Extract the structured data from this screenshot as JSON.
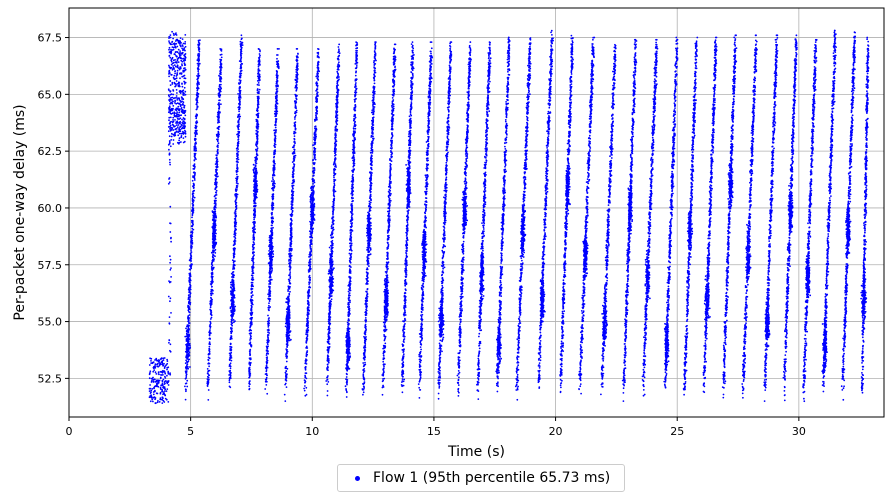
{
  "chart_data": {
    "type": "scatter",
    "title": "",
    "xlabel": "Time (s)",
    "ylabel": "Per-packet one-way delay (ms)",
    "xlim": [
      0,
      33.5
    ],
    "ylim": [
      50.8,
      68.8
    ],
    "xticks": [
      0,
      5,
      10,
      15,
      20,
      25,
      30
    ],
    "xtick_labels": [
      "0",
      "5",
      "10",
      "15",
      "20",
      "25",
      "30"
    ],
    "yticks": [
      52.5,
      55.0,
      57.5,
      60.0,
      62.5,
      65.0,
      67.5
    ],
    "ytick_labels": [
      "52.5",
      "55.0",
      "57.5",
      "60.0",
      "62.5",
      "65.0",
      "67.5"
    ],
    "grid": true,
    "legend_position": "bottom-center",
    "series": [
      {
        "name": "Flow 1 (95th percentile 65.73 ms)",
        "color": "#0000ff",
        "marker": "dot",
        "initial_cluster": {
          "x": [
            3.3,
            4.1
          ],
          "y": [
            51.4,
            53.4
          ]
        },
        "burst_start": {
          "x": 4.1,
          "y_top": 68.9,
          "y_bottom": 63.0
        },
        "ramps": [
          {
            "x_start": 4.8,
            "x_end": 5.7,
            "y_min": 51.5,
            "y_max": 67.5
          },
          {
            "x_start": 5.7,
            "x_end": 6.6,
            "y_min": 51.5,
            "y_max": 67.0
          },
          {
            "x_start": 6.6,
            "x_end": 7.4,
            "y_min": 51.5,
            "y_max": 67.6
          },
          {
            "x_start": 7.4,
            "x_end": 8.1,
            "y_min": 51.6,
            "y_max": 67.0
          },
          {
            "x_start": 8.1,
            "x_end": 8.9,
            "y_min": 51.6,
            "y_max": 67.0
          },
          {
            "x_start": 8.9,
            "x_end": 9.7,
            "y_min": 51.5,
            "y_max": 67.0
          },
          {
            "x_start": 9.7,
            "x_end": 10.6,
            "y_min": 51.6,
            "y_max": 67.0
          },
          {
            "x_start": 10.6,
            "x_end": 11.4,
            "y_min": 51.4,
            "y_max": 67.2
          },
          {
            "x_start": 11.4,
            "x_end": 12.1,
            "y_min": 51.3,
            "y_max": 67.3
          },
          {
            "x_start": 12.1,
            "x_end": 12.9,
            "y_min": 51.5,
            "y_max": 67.3
          },
          {
            "x_start": 12.9,
            "x_end": 13.7,
            "y_min": 51.4,
            "y_max": 67.2
          },
          {
            "x_start": 13.7,
            "x_end": 14.4,
            "y_min": 51.6,
            "y_max": 67.3
          },
          {
            "x_start": 14.4,
            "x_end": 15.2,
            "y_min": 51.4,
            "y_max": 67.3
          },
          {
            "x_start": 15.2,
            "x_end": 16.0,
            "y_min": 51.6,
            "y_max": 67.3
          },
          {
            "x_start": 16.0,
            "x_end": 16.8,
            "y_min": 51.6,
            "y_max": 67.3
          },
          {
            "x_start": 16.8,
            "x_end": 17.6,
            "y_min": 51.5,
            "y_max": 67.3
          },
          {
            "x_start": 17.6,
            "x_end": 18.4,
            "y_min": 51.5,
            "y_max": 67.5
          },
          {
            "x_start": 18.4,
            "x_end": 19.3,
            "y_min": 51.5,
            "y_max": 67.5
          },
          {
            "x_start": 19.3,
            "x_end": 20.2,
            "y_min": 51.5,
            "y_max": 67.8
          },
          {
            "x_start": 20.2,
            "x_end": 21.0,
            "y_min": 51.5,
            "y_max": 67.6
          },
          {
            "x_start": 21.0,
            "x_end": 21.9,
            "y_min": 51.6,
            "y_max": 67.5
          },
          {
            "x_start": 21.9,
            "x_end": 22.8,
            "y_min": 51.5,
            "y_max": 67.4
          },
          {
            "x_start": 22.8,
            "x_end": 23.6,
            "y_min": 51.5,
            "y_max": 67.4
          },
          {
            "x_start": 23.6,
            "x_end": 24.5,
            "y_min": 51.6,
            "y_max": 67.4
          },
          {
            "x_start": 24.5,
            "x_end": 25.3,
            "y_min": 51.5,
            "y_max": 67.5
          },
          {
            "x_start": 25.3,
            "x_end": 26.1,
            "y_min": 51.5,
            "y_max": 67.5
          },
          {
            "x_start": 26.1,
            "x_end": 26.9,
            "y_min": 51.5,
            "y_max": 67.5
          },
          {
            "x_start": 26.9,
            "x_end": 27.7,
            "y_min": 51.5,
            "y_max": 67.6
          },
          {
            "x_start": 27.7,
            "x_end": 28.6,
            "y_min": 51.4,
            "y_max": 67.6
          },
          {
            "x_start": 28.6,
            "x_end": 29.4,
            "y_min": 51.5,
            "y_max": 67.6
          },
          {
            "x_start": 29.4,
            "x_end": 30.2,
            "y_min": 51.5,
            "y_max": 67.6
          },
          {
            "x_start": 30.2,
            "x_end": 31.0,
            "y_min": 51.4,
            "y_max": 67.4
          },
          {
            "x_start": 31.0,
            "x_end": 31.8,
            "y_min": 51.5,
            "y_max": 67.8
          },
          {
            "x_start": 31.8,
            "x_end": 32.6,
            "y_min": 51.5,
            "y_max": 67.8
          },
          {
            "x_start": 32.6,
            "x_end": 33.0,
            "y_min": 51.3,
            "y_max": 67.5
          }
        ]
      }
    ]
  },
  "legend": {
    "label": "Flow 1 (95th percentile 65.73 ms)"
  }
}
